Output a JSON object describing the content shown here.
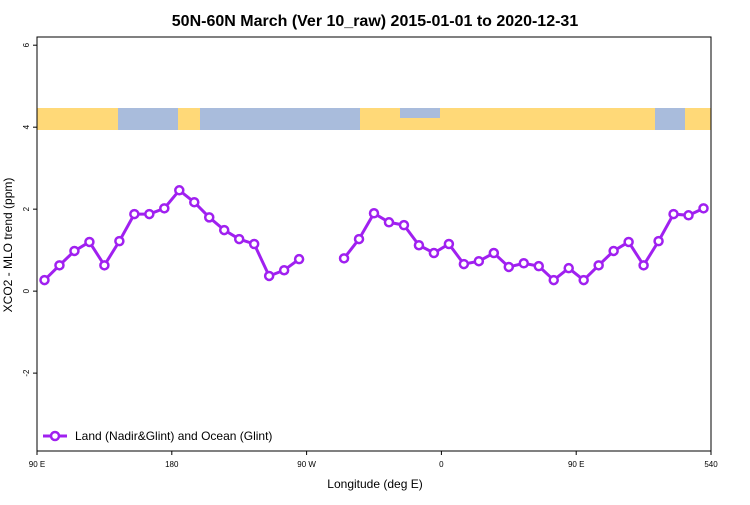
{
  "chart_data": {
    "type": "line",
    "title": "50N-60N March (Ver 10_raw)   2015-01-01 to 2020-12-31",
    "x_label": "Longitude (deg E)",
    "y_label": "XCO2 - MLO trend (ppm)",
    "x": [
      95,
      105,
      115,
      125,
      135,
      145,
      155,
      165,
      175,
      185,
      195,
      205,
      215,
      225,
      235,
      245,
      255,
      265,
      275,
      285,
      295,
      305,
      315,
      325,
      335,
      345,
      355,
      365,
      375,
      385,
      395,
      405,
      415,
      425,
      435,
      445,
      455,
      465,
      475,
      485,
      495,
      505,
      515,
      525,
      535
    ],
    "series": [
      {
        "name": "Land (Nadir&Glint) and Ocean (Glint)",
        "color": "#a020f0",
        "values": [
          0.27,
          0.63,
          0.98,
          1.2,
          0.63,
          1.22,
          1.88,
          1.88,
          2.02,
          2.46,
          2.17,
          1.8,
          1.49,
          1.27,
          1.15,
          0.37,
          0.51,
          0.78,
          null,
          null,
          0.8,
          1.27,
          1.9,
          1.68,
          1.61,
          1.12,
          0.93,
          1.15,
          0.66,
          0.73,
          0.93,
          0.59,
          0.68,
          0.61,
          0.27,
          0.56,
          0.27,
          0.63,
          0.98,
          1.2,
          0.63,
          1.22,
          1.88,
          1.85,
          2.02
        ]
      }
    ],
    "xlim": [
      90,
      540
    ],
    "xticks": [
      {
        "value": 90,
        "label": "90 E"
      },
      180,
      {
        "value": 270,
        "label": "90 W"
      },
      {
        "value": 360,
        "label": "0"
      },
      {
        "value": 450,
        "label": "90 E"
      },
      540
    ],
    "ylim": [
      -3.9,
      6.2
    ],
    "yticks": [
      -2,
      0,
      2,
      4,
      6
    ],
    "legend": "bottom-left"
  }
}
